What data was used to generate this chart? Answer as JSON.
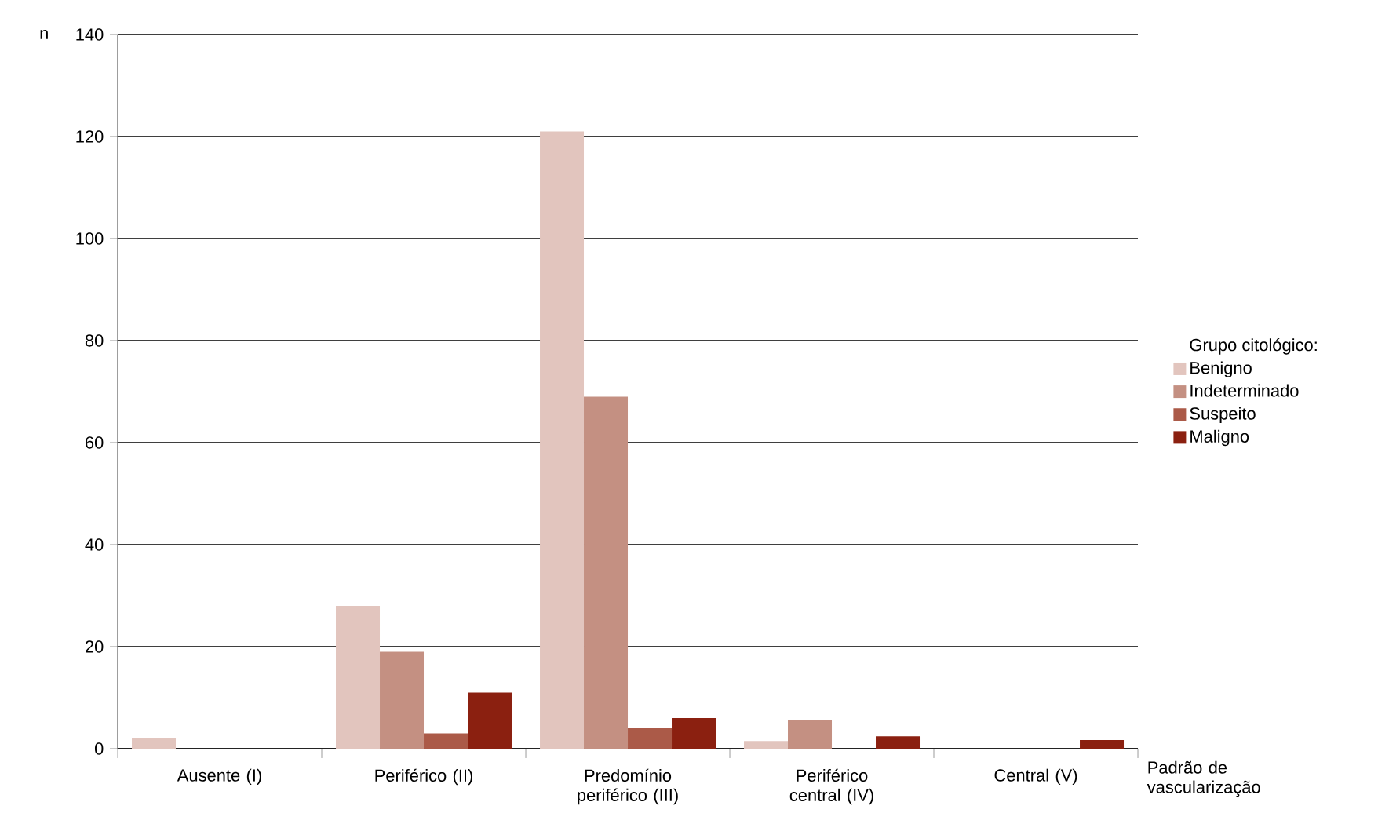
{
  "chart_data": {
    "type": "bar",
    "xlabel": "Padrão de vascularização",
    "ylabel": "n",
    "legend_title": "Grupo citológico:",
    "categories": [
      "Ausente (I)",
      "Periférico (II)",
      "Predomínio periférico (III)",
      "Periférico central (IV)",
      "Central (V)"
    ],
    "series": [
      {
        "name": "Benigno",
        "color": "#e2c5be",
        "values": [
          2,
          28,
          121,
          1.5,
          0
        ]
      },
      {
        "name": "Indeterminado",
        "color": "#c49082",
        "values": [
          0,
          19,
          69,
          5.6,
          0
        ]
      },
      {
        "name": "Suspeito",
        "color": "#ab5a48",
        "values": [
          0,
          3,
          4,
          0,
          0
        ]
      },
      {
        "name": "Maligno",
        "color": "#8b2010",
        "values": [
          0,
          11,
          6,
          2.4,
          1.7
        ]
      }
    ],
    "ylim": [
      0,
      140
    ],
    "yticks": [
      0,
      20,
      40,
      60,
      80,
      100,
      120,
      140
    ],
    "grid": "y",
    "legend": "right"
  }
}
